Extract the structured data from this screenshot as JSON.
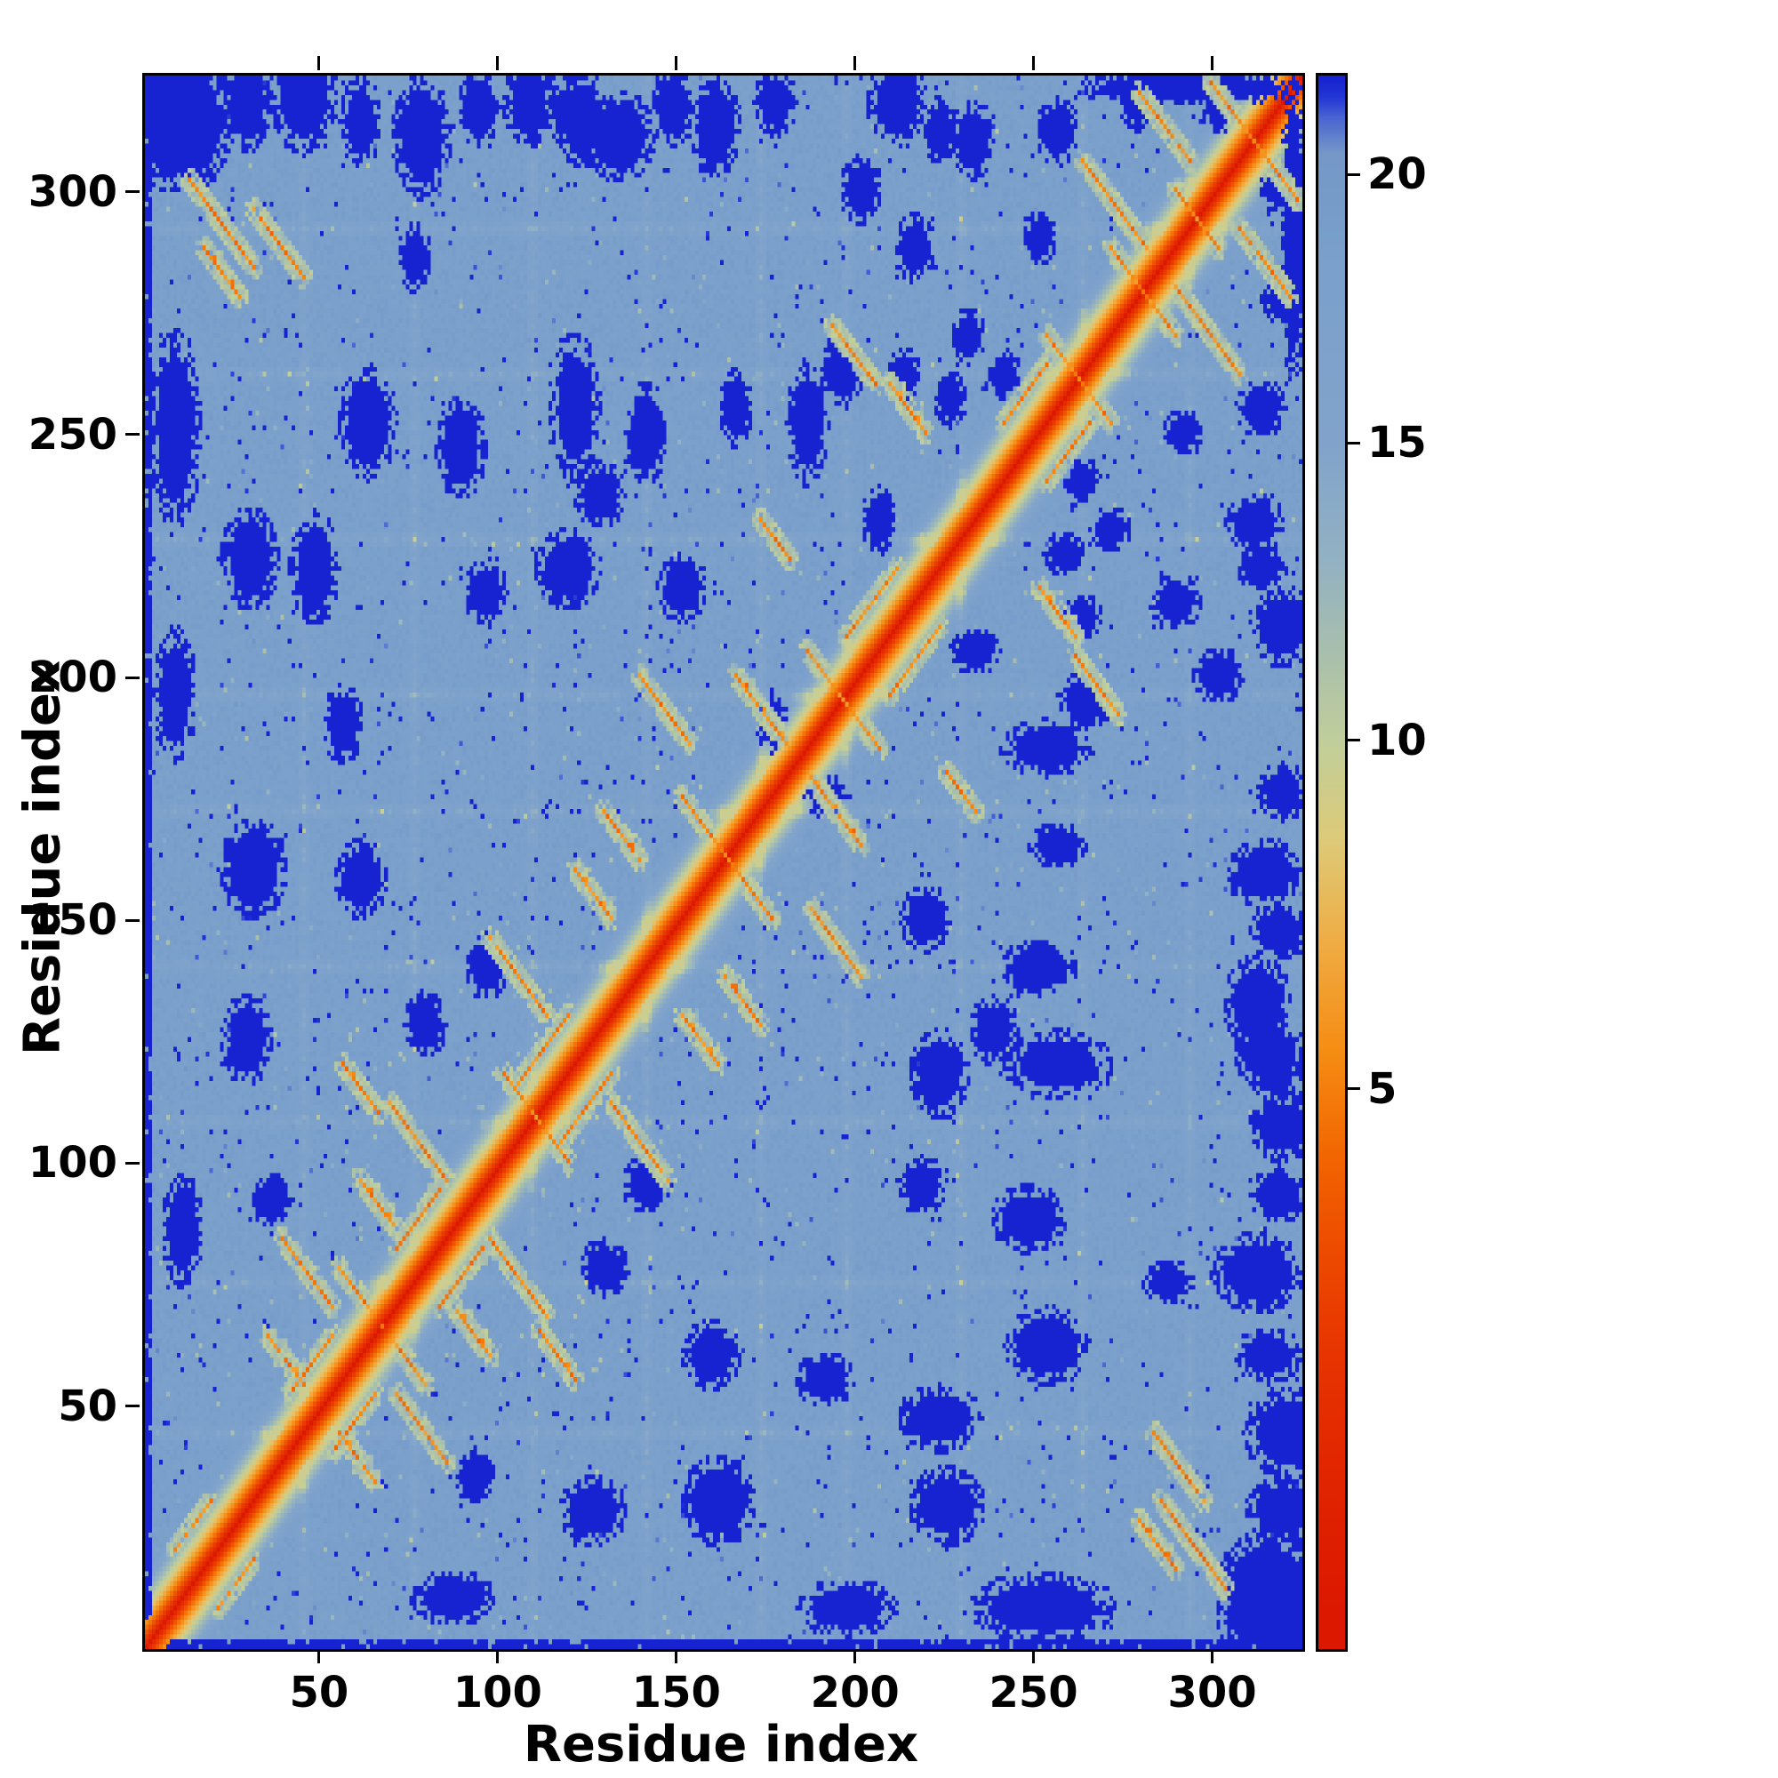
{
  "chart_data": {
    "type": "heatmap",
    "title": "",
    "xlabel": "Residue index",
    "ylabel": "Residue index",
    "x_range": [
      1,
      324
    ],
    "y_range": [
      1,
      324
    ],
    "x_ticks": [
      50,
      100,
      150,
      200,
      250,
      300
    ],
    "y_ticks": [
      50,
      100,
      150,
      200,
      250,
      300
    ],
    "grid": false,
    "legend": "none",
    "colorbar": {
      "position": "right",
      "ticks": [
        5,
        10,
        15,
        20
      ],
      "vmin": 0,
      "vmax": 22,
      "scale_gamma": 0.7
    },
    "colormap_stops": [
      [
        0.0,
        "#dc1800"
      ],
      [
        2.2,
        "#e93800"
      ],
      [
        4.0,
        "#f26100"
      ],
      [
        5.5,
        "#f68d13"
      ],
      [
        7.0,
        "#f0ad45"
      ],
      [
        8.5,
        "#decb79"
      ],
      [
        10.0,
        "#c2cf9b"
      ],
      [
        11.5,
        "#a9bfae"
      ],
      [
        13.0,
        "#93b2c3"
      ],
      [
        15.0,
        "#82a4cb"
      ],
      [
        18.5,
        "#7aa0cb"
      ],
      [
        20.5,
        "#7598c8"
      ],
      [
        21.2,
        "#4a64d2"
      ],
      [
        21.6,
        "#2336d6"
      ],
      [
        22.0,
        "#1723d0"
      ]
    ],
    "matrix": {
      "n": 324,
      "symmetric": true,
      "base_value": 18.4,
      "value_cap": 22,
      "dark_value": 22,
      "chain_slope": 1.15,
      "edge_strip": 2,
      "edge_strip_prob": 0.92,
      "noise": {
        "seed": 1337,
        "amp": 1.05,
        "spike_prob": 0.02,
        "spike_amp": 4.2,
        "dip_prob": 0.01,
        "dip_amp": 5.5
      },
      "bands": [
        44,
        75,
        108,
        140,
        172,
        196,
        228,
        262,
        292
      ],
      "band_depth": 3.6,
      "dark_blobs": [
        [
          4,
          316,
          4,
          14
        ],
        [
          12,
          314,
          10,
          13
        ],
        [
          28,
          318,
          6,
          9
        ],
        [
          44,
          319,
          8,
          10
        ],
        [
          60,
          314,
          5,
          8
        ],
        [
          77,
          311,
          7,
          11
        ],
        [
          93,
          317,
          5,
          7
        ],
        [
          107,
          318,
          6,
          8
        ],
        [
          122,
          314,
          6,
          8
        ],
        [
          132,
          311,
          9,
          8
        ],
        [
          147,
          317,
          5,
          7
        ],
        [
          159,
          313,
          6,
          9
        ],
        [
          176,
          318,
          5,
          6
        ],
        [
          210,
          318,
          7,
          8
        ],
        [
          222,
          312,
          4,
          6
        ],
        [
          231,
          310,
          5,
          7
        ],
        [
          255,
          312,
          5,
          6
        ],
        [
          277,
          319,
          4,
          6
        ],
        [
          300,
          317,
          4,
          5
        ],
        [
          8,
          251,
          6,
          18
        ],
        [
          8,
          196,
          5,
          12
        ],
        [
          29,
          224,
          7,
          9
        ],
        [
          47,
          222,
          6,
          10
        ],
        [
          62,
          252,
          7,
          10
        ],
        [
          88,
          247,
          6,
          9
        ],
        [
          75,
          286,
          4,
          6
        ],
        [
          55,
          190,
          5,
          7
        ],
        [
          30,
          160,
          8,
          9
        ],
        [
          60,
          158,
          6,
          7
        ],
        [
          28,
          125,
          6,
          8
        ],
        [
          78,
          128,
          5,
          6
        ],
        [
          10,
          86,
          5,
          10
        ],
        [
          35,
          92,
          5,
          5
        ],
        [
          120,
          255,
          6,
          13
        ],
        [
          140,
          250,
          5,
          9
        ],
        [
          118,
          222,
          8,
          7
        ],
        [
          127,
          237,
          6,
          6
        ],
        [
          150,
          218,
          6,
          6
        ],
        [
          165,
          255,
          4,
          7
        ],
        [
          185,
          252,
          5,
          11
        ],
        [
          195,
          263,
          5,
          7
        ],
        [
          205,
          232,
          4,
          6
        ],
        [
          175,
          190,
          4,
          5
        ],
        [
          95,
          140,
          5,
          6
        ],
        [
          95,
          217,
          5,
          6
        ],
        [
          200,
          300,
          5,
          6
        ],
        [
          215,
          288,
          5,
          6
        ],
        [
          230,
          270,
          4,
          5
        ],
        [
          250,
          290,
          4,
          5
        ],
        [
          118,
          316,
          5,
          6
        ],
        [
          321,
          292,
          3,
          30
        ],
        [
          212,
          262,
          4,
          5
        ],
        [
          225,
          257,
          4,
          5
        ],
        [
          240,
          262,
          4,
          5
        ]
      ],
      "contact_value": 5,
      "contact_segments": [
        [
          12,
          302,
          30,
          284
        ],
        [
          30,
          296,
          44,
          282
        ],
        [
          16,
          288,
          26,
          278
        ],
        [
          38,
          84,
          52,
          70
        ],
        [
          54,
          78,
          66,
          66
        ],
        [
          68,
          112,
          84,
          96
        ],
        [
          96,
          146,
          112,
          130
        ],
        [
          100,
          118,
          112,
          106
        ],
        [
          138,
          200,
          152,
          186
        ],
        [
          150,
          175,
          163,
          162
        ],
        [
          165,
          200,
          180,
          185
        ],
        [
          185,
          205,
          198,
          192
        ],
        [
          252,
          270,
          264,
          258
        ],
        [
          262,
          306,
          280,
          288
        ],
        [
          278,
          320,
          292,
          306
        ],
        [
          288,
          300,
          299,
          289
        ],
        [
          298,
          322,
          314,
          306
        ],
        [
          40,
          52,
          52,
          64
        ],
        [
          70,
          82,
          82,
          94
        ],
        [
          103,
          115,
          118,
          130
        ],
        [
          196,
          208,
          210,
          222
        ],
        [
          192,
          272,
          204,
          260
        ],
        [
          240,
          252,
          252,
          264
        ],
        [
          8,
          20,
          18,
          30
        ],
        [
          55,
          120,
          65,
          110
        ],
        [
          208,
          260,
          218,
          250
        ],
        [
          270,
          288,
          282,
          276
        ],
        [
          120,
          160,
          130,
          150
        ],
        [
          128,
          172,
          138,
          162
        ],
        [
          60,
          96,
          70,
          86
        ],
        [
          34,
          64,
          44,
          54
        ],
        [
          172,
          232,
          180,
          224
        ]
      ]
    }
  }
}
